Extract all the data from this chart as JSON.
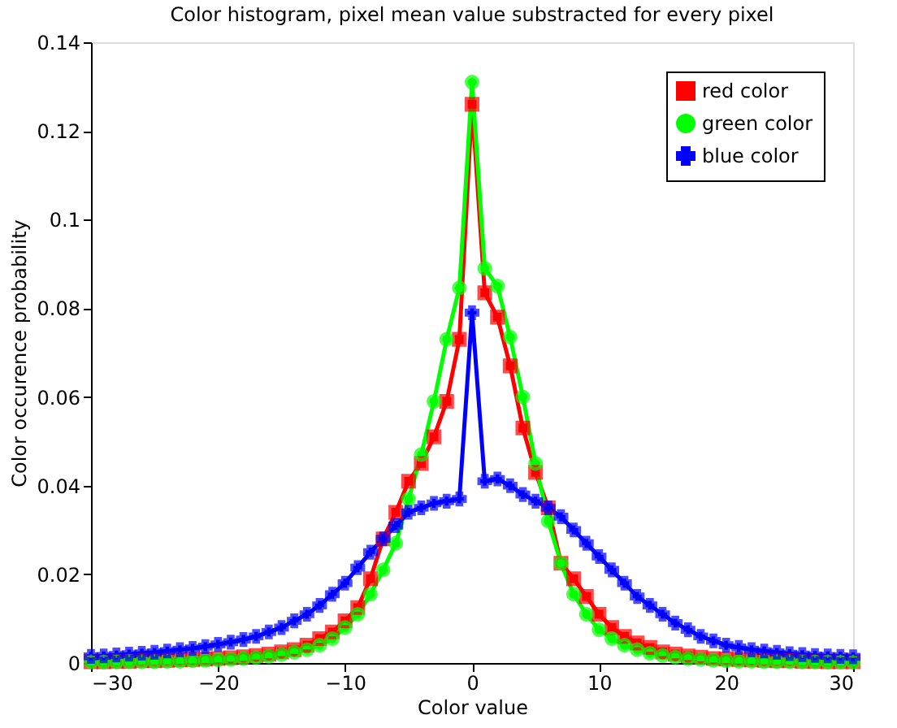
{
  "chart_data": {
    "type": "line",
    "title": "Color histogram, pixel mean value substracted for every pixel",
    "xlabel": "Color value",
    "ylabel": "Color occurence probability",
    "x": [
      -30,
      -29,
      -28,
      -27,
      -26,
      -25,
      -24,
      -23,
      -22,
      -21,
      -20,
      -19,
      -18,
      -17,
      -16,
      -15,
      -14,
      -13,
      -12,
      -11,
      -10,
      -9,
      -8,
      -7,
      -6,
      -5,
      -4,
      -3,
      -2,
      -1,
      0,
      1,
      2,
      3,
      4,
      5,
      6,
      7,
      8,
      9,
      10,
      11,
      12,
      13,
      14,
      15,
      16,
      17,
      18,
      19,
      20,
      21,
      22,
      23,
      24,
      25,
      26,
      27,
      28,
      29,
      30
    ],
    "series": [
      {
        "name": "red color",
        "color": "#ff0000",
        "marker": "square",
        "values": [
          0.0003,
          0.0003,
          0.0004,
          0.0004,
          0.0005,
          0.0005,
          0.0006,
          0.0007,
          0.0008,
          0.0009,
          0.001,
          0.0012,
          0.0014,
          0.0017,
          0.002,
          0.0025,
          0.003,
          0.004,
          0.0055,
          0.007,
          0.0095,
          0.0125,
          0.019,
          0.028,
          0.034,
          0.041,
          0.045,
          0.051,
          0.059,
          0.073,
          0.126,
          0.0835,
          0.078,
          0.067,
          0.053,
          0.043,
          0.035,
          0.0225,
          0.019,
          0.015,
          0.011,
          0.008,
          0.006,
          0.0045,
          0.0035,
          0.0025,
          0.002,
          0.0016,
          0.0013,
          0.001,
          0.0009,
          0.0008,
          0.0007,
          0.0006,
          0.0005,
          0.0005,
          0.0004,
          0.0004,
          0.0003,
          0.0003,
          0.0003
        ]
      },
      {
        "name": "green color",
        "color": "#00ff00",
        "marker": "circle",
        "values": [
          0.0002,
          0.0002,
          0.0002,
          0.0003,
          0.0003,
          0.0003,
          0.0004,
          0.0004,
          0.0005,
          0.0006,
          0.0007,
          0.0008,
          0.001,
          0.0012,
          0.0015,
          0.0019,
          0.0024,
          0.003,
          0.004,
          0.0055,
          0.008,
          0.011,
          0.0155,
          0.021,
          0.027,
          0.037,
          0.047,
          0.059,
          0.073,
          0.0846,
          0.131,
          0.089,
          0.085,
          0.0735,
          0.06,
          0.045,
          0.032,
          0.0225,
          0.0155,
          0.011,
          0.0075,
          0.0055,
          0.004,
          0.003,
          0.0022,
          0.0017,
          0.0013,
          0.001,
          0.0008,
          0.0006,
          0.0005,
          0.0004,
          0.0004,
          0.0003,
          0.0003,
          0.0003,
          0.0002,
          0.0002,
          0.0002,
          0.0002,
          0.0002
        ]
      },
      {
        "name": "blue color",
        "color": "#0000ff",
        "marker": "cross",
        "values": [
          0.0015,
          0.0016,
          0.0018,
          0.002,
          0.0022,
          0.0024,
          0.0027,
          0.003,
          0.0033,
          0.0037,
          0.0042,
          0.0047,
          0.0053,
          0.006,
          0.007,
          0.008,
          0.0095,
          0.011,
          0.013,
          0.0155,
          0.018,
          0.0215,
          0.025,
          0.028,
          0.031,
          0.034,
          0.035,
          0.036,
          0.0365,
          0.037,
          0.079,
          0.041,
          0.0415,
          0.04,
          0.038,
          0.0365,
          0.035,
          0.033,
          0.03,
          0.027,
          0.024,
          0.021,
          0.018,
          0.015,
          0.013,
          0.011,
          0.009,
          0.0075,
          0.006,
          0.005,
          0.004,
          0.0035,
          0.003,
          0.0027,
          0.0024,
          0.0021,
          0.0019,
          0.0017,
          0.0016,
          0.0015,
          0.0014
        ]
      }
    ],
    "xlim": [
      -30,
      30
    ],
    "xticks": [
      -30,
      -20,
      -10,
      0,
      10,
      20,
      30
    ],
    "ylim": [
      0,
      0.14
    ],
    "yticks": [
      0,
      0.02,
      0.04,
      0.06,
      0.08,
      0.1,
      0.12,
      0.14
    ],
    "grid": false,
    "legend": "top right"
  }
}
